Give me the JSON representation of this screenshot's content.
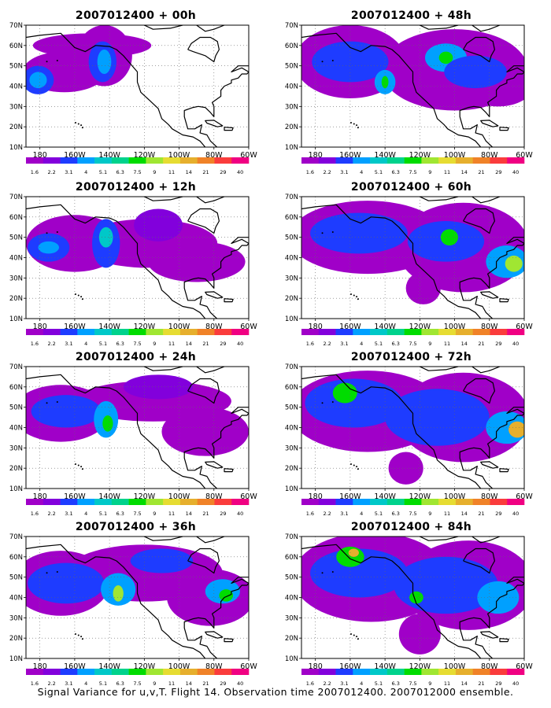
{
  "caption": "Signal Variance for u,v,T. Flight 14. Observation time 2007012400. 2007012000 ensemble.",
  "chart_data": {
    "type": "heatmap",
    "panels": [
      {
        "title": "2007012400 + 00h",
        "lead_hours": 0
      },
      {
        "title": "2007012400 + 12h",
        "lead_hours": 12
      },
      {
        "title": "2007012400 + 24h",
        "lead_hours": 24
      },
      {
        "title": "2007012400 + 36h",
        "lead_hours": 36
      },
      {
        "title": "2007012400 + 48h",
        "lead_hours": 48
      },
      {
        "title": "2007012400 + 60h",
        "lead_hours": 60
      },
      {
        "title": "2007012400 + 72h",
        "lead_hours": 72
      },
      {
        "title": "2007012400 + 84h",
        "lead_hours": 84
      }
    ],
    "x_ticks": [
      "180",
      "160W",
      "140W",
      "120W",
      "100W",
      "80W",
      "60W"
    ],
    "x_tick_values": [
      -180,
      -160,
      -140,
      -120,
      -100,
      -80,
      -60
    ],
    "y_ticks": [
      "10N",
      "20N",
      "30N",
      "40N",
      "50N",
      "60N",
      "70N"
    ],
    "y_tick_values": [
      10,
      20,
      30,
      40,
      50,
      60,
      70
    ],
    "xlim": [
      -188,
      -60
    ],
    "ylim": [
      10,
      70
    ],
    "grid": true,
    "colorbar": {
      "levels": [
        1.6,
        2.2,
        3.1,
        4,
        5.1,
        6.3,
        7.5,
        9,
        11,
        14,
        21,
        29,
        40
      ],
      "labels": [
        "1.6",
        "2.2",
        "3.1",
        "4",
        "5.1",
        "6.3",
        "7.5",
        "9",
        "11",
        "14",
        "21",
        "29",
        "40"
      ],
      "colors": [
        "#a000c8",
        "#8200dc",
        "#1e3cff",
        "#00a0ff",
        "#00c8c8",
        "#00d28c",
        "#00dc00",
        "#a0e632",
        "#e6dc32",
        "#e6af2d",
        "#f08228",
        "#fa3c3c",
        "#f00082"
      ]
    },
    "blobs": [
      [
        {
          "lon": -166,
          "lat": 47,
          "rlon": 24,
          "rlat": 10,
          "level": 0
        },
        {
          "lon": -143,
          "lat": 55,
          "rlon": 16,
          "rlat": 15,
          "level": 0
        },
        {
          "lon": -150,
          "lat": 60,
          "rlon": 34,
          "rlat": 6,
          "level": 0
        },
        {
          "lon": -181,
          "lat": 43,
          "rlon": 9,
          "rlat": 7,
          "level": 2
        },
        {
          "lon": -181,
          "lat": 43,
          "rlon": 5,
          "rlat": 4,
          "level": 3
        },
        {
          "lon": -144,
          "lat": 52,
          "rlon": 8,
          "rlat": 10,
          "level": 2
        },
        {
          "lon": -143,
          "lat": 52,
          "rlon": 4,
          "rlat": 6,
          "level": 3
        }
      ],
      [
        {
          "lon": -160,
          "lat": 47,
          "rlon": 28,
          "rlat": 14,
          "level": 0
        },
        {
          "lon": -118,
          "lat": 47,
          "rlon": 40,
          "rlat": 12,
          "level": 0
        },
        {
          "lon": -90,
          "lat": 38,
          "rlon": 28,
          "rlat": 10,
          "level": 0
        },
        {
          "lon": -175,
          "lat": 45,
          "rlon": 12,
          "rlat": 7,
          "level": 2
        },
        {
          "lon": -175,
          "lat": 45,
          "rlon": 6,
          "rlat": 3,
          "level": 3
        },
        {
          "lon": -142,
          "lat": 47,
          "rlon": 8,
          "rlat": 12,
          "level": 2
        },
        {
          "lon": -142,
          "lat": 50,
          "rlon": 4,
          "rlat": 5,
          "level": 4
        },
        {
          "lon": -112,
          "lat": 56,
          "rlon": 14,
          "rlat": 8,
          "level": 1
        }
      ],
      [
        {
          "lon": -168,
          "lat": 47,
          "rlon": 28,
          "rlat": 14,
          "level": 0
        },
        {
          "lon": -115,
          "lat": 53,
          "rlon": 45,
          "rlat": 10,
          "level": 0
        },
        {
          "lon": -85,
          "lat": 38,
          "rlon": 25,
          "rlat": 12,
          "level": 0
        },
        {
          "lon": -165,
          "lat": 48,
          "rlon": 20,
          "rlat": 8,
          "level": 2
        },
        {
          "lon": -142,
          "lat": 44,
          "rlon": 7,
          "rlat": 9,
          "level": 3
        },
        {
          "lon": -141,
          "lat": 42,
          "rlon": 3,
          "rlat": 4,
          "level": 6
        },
        {
          "lon": -112,
          "lat": 60,
          "rlon": 20,
          "rlat": 6,
          "level": 1
        }
      ],
      [
        {
          "lon": -168,
          "lat": 47,
          "rlon": 28,
          "rlat": 16,
          "level": 0
        },
        {
          "lon": -120,
          "lat": 52,
          "rlon": 45,
          "rlat": 14,
          "level": 0
        },
        {
          "lon": -82,
          "lat": 40,
          "rlon": 25,
          "rlat": 14,
          "level": 0
        },
        {
          "lon": -165,
          "lat": 47,
          "rlon": 22,
          "rlat": 10,
          "level": 2
        },
        {
          "lon": -135,
          "lat": 44,
          "rlon": 10,
          "rlat": 8,
          "level": 3
        },
        {
          "lon": -135,
          "lat": 42,
          "rlon": 3,
          "rlat": 4,
          "level": 7
        },
        {
          "lon": -110,
          "lat": 58,
          "rlon": 18,
          "rlat": 6,
          "level": 2
        },
        {
          "lon": -75,
          "lat": 43,
          "rlon": 10,
          "rlat": 6,
          "level": 3
        },
        {
          "lon": -73,
          "lat": 41,
          "rlon": 4,
          "rlat": 3,
          "level": 6
        }
      ],
      [
        {
          "lon": -160,
          "lat": 52,
          "rlon": 32,
          "rlat": 18,
          "level": 0
        },
        {
          "lon": -100,
          "lat": 48,
          "rlon": 42,
          "rlat": 20,
          "level": 0
        },
        {
          "lon": -75,
          "lat": 40,
          "rlon": 20,
          "rlat": 10,
          "level": 0
        },
        {
          "lon": -160,
          "lat": 52,
          "rlon": 22,
          "rlat": 10,
          "level": 2
        },
        {
          "lon": -140,
          "lat": 42,
          "rlon": 6,
          "rlat": 6,
          "level": 3
        },
        {
          "lon": -140,
          "lat": 42,
          "rlon": 2,
          "rlat": 3,
          "level": 6
        },
        {
          "lon": -105,
          "lat": 54,
          "rlon": 12,
          "rlat": 7,
          "level": 3
        },
        {
          "lon": -105,
          "lat": 54,
          "rlon": 4,
          "rlat": 3,
          "level": 6
        },
        {
          "lon": -88,
          "lat": 47,
          "rlon": 18,
          "rlat": 8,
          "level": 2
        }
      ],
      [
        {
          "lon": -150,
          "lat": 50,
          "rlon": 45,
          "rlat": 18,
          "level": 0
        },
        {
          "lon": -95,
          "lat": 45,
          "rlon": 38,
          "rlat": 22,
          "level": 0
        },
        {
          "lon": -118,
          "lat": 25,
          "rlon": 10,
          "rlat": 8,
          "level": 0
        },
        {
          "lon": -155,
          "lat": 52,
          "rlon": 28,
          "rlat": 10,
          "level": 2
        },
        {
          "lon": -105,
          "lat": 48,
          "rlon": 22,
          "rlat": 10,
          "level": 2
        },
        {
          "lon": -103,
          "lat": 50,
          "rlon": 5,
          "rlat": 4,
          "level": 6
        },
        {
          "lon": -70,
          "lat": 38,
          "rlon": 12,
          "rlat": 8,
          "level": 3
        },
        {
          "lon": -66,
          "lat": 37,
          "rlon": 5,
          "rlat": 4,
          "level": 7
        }
      ],
      [
        {
          "lon": -150,
          "lat": 48,
          "rlon": 45,
          "rlat": 20,
          "level": 0
        },
        {
          "lon": -95,
          "lat": 45,
          "rlon": 38,
          "rlat": 22,
          "level": 0
        },
        {
          "lon": -128,
          "lat": 20,
          "rlon": 10,
          "rlat": 8,
          "level": 0
        },
        {
          "lon": -158,
          "lat": 52,
          "rlon": 28,
          "rlat": 12,
          "level": 2
        },
        {
          "lon": -163,
          "lat": 57,
          "rlon": 7,
          "rlat": 5,
          "level": 6
        },
        {
          "lon": -110,
          "lat": 45,
          "rlon": 30,
          "rlat": 14,
          "level": 2
        },
        {
          "lon": -70,
          "lat": 40,
          "rlon": 12,
          "rlat": 8,
          "level": 3
        },
        {
          "lon": -64,
          "lat": 39,
          "rlon": 5,
          "rlat": 4,
          "level": 9
        }
      ],
      [
        {
          "lon": -148,
          "lat": 50,
          "rlon": 45,
          "rlat": 22,
          "level": 0
        },
        {
          "lon": -92,
          "lat": 46,
          "rlon": 38,
          "rlat": 22,
          "level": 0
        },
        {
          "lon": -120,
          "lat": 22,
          "rlon": 12,
          "rlat": 10,
          "level": 0
        },
        {
          "lon": -155,
          "lat": 52,
          "rlon": 28,
          "rlat": 12,
          "level": 2
        },
        {
          "lon": -160,
          "lat": 60,
          "rlon": 8,
          "rlat": 5,
          "level": 6
        },
        {
          "lon": -158,
          "lat": 62,
          "rlon": 3,
          "rlat": 2,
          "level": 9
        },
        {
          "lon": -105,
          "lat": 46,
          "rlon": 30,
          "rlat": 14,
          "level": 2
        },
        {
          "lon": -122,
          "lat": 40,
          "rlon": 4,
          "rlat": 3,
          "level": 6
        },
        {
          "lon": -75,
          "lat": 40,
          "rlon": 12,
          "rlat": 8,
          "level": 3
        }
      ]
    ]
  }
}
